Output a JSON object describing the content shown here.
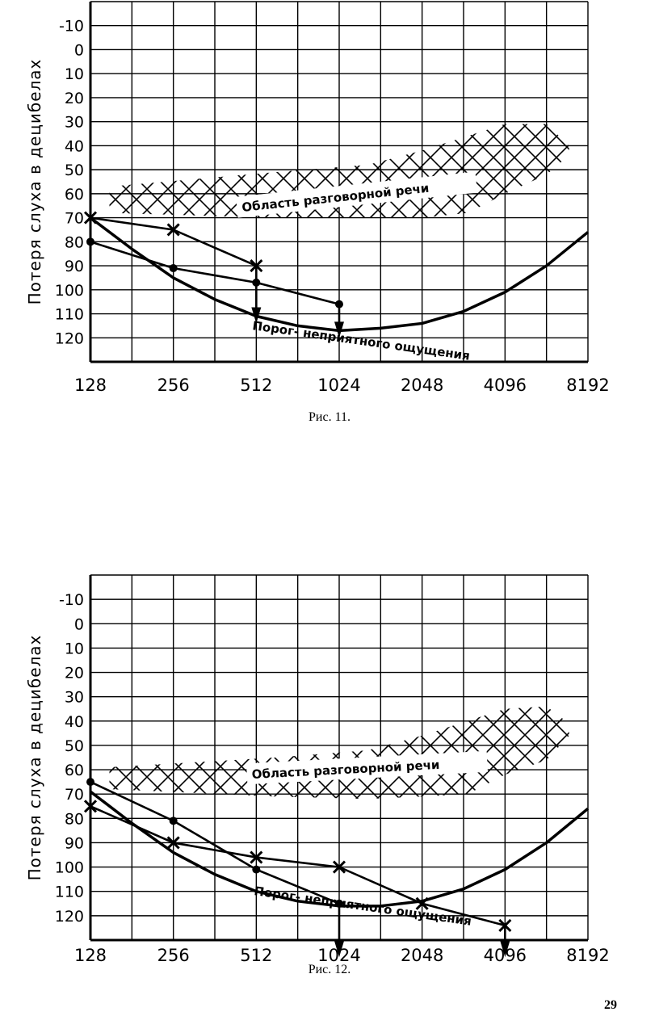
{
  "chart_data": [
    {
      "type": "line",
      "caption": "Рис. 11.",
      "ylabel": "Потеря слуха в децибелах",
      "x_ticks": [
        "128",
        "256",
        "512",
        "1024",
        "2048",
        "4096",
        "8192"
      ],
      "y_ticks": [
        "-10",
        "0",
        "10",
        "20",
        "30",
        "40",
        "50",
        "60",
        "70",
        "80",
        "90",
        "100",
        "110",
        "120"
      ],
      "ylim": [
        -20,
        130
      ],
      "x_scale": "log2",
      "y_inverted": true,
      "grid": true,
      "speech_region": {
        "label": "Область разговорной речи",
        "top": [
          [
            150,
            57
          ],
          [
            600,
            51
          ],
          [
            1300,
            48
          ],
          [
            2048,
            42
          ],
          [
            4096,
            31
          ],
          [
            5800,
            31
          ],
          [
            7000,
            40
          ]
        ],
        "bottom": [
          [
            150,
            68
          ],
          [
            600,
            70
          ],
          [
            1300,
            70
          ],
          [
            2048,
            70
          ],
          [
            3000,
            68
          ],
          [
            4096,
            60
          ],
          [
            5800,
            52
          ],
          [
            7000,
            44
          ]
        ]
      },
      "threshold_curve": {
        "label": "Порог- неприятного ощущения",
        "points": [
          [
            128,
            70
          ],
          [
            181,
            83
          ],
          [
            256,
            95
          ],
          [
            362,
            104
          ],
          [
            512,
            111
          ],
          [
            724,
            115
          ],
          [
            1024,
            117
          ],
          [
            1448,
            116
          ],
          [
            2048,
            114
          ],
          [
            2896,
            109
          ],
          [
            4096,
            101
          ],
          [
            5793,
            90
          ],
          [
            8192,
            76
          ]
        ]
      },
      "series": [
        {
          "marker": "cross",
          "points": [
            [
              128,
              70
            ],
            [
              256,
              75
            ],
            [
              512,
              90
            ]
          ],
          "arrow_from": [
            512,
            90
          ],
          "arrow_to": [
            512,
            112
          ]
        },
        {
          "marker": "dot",
          "points": [
            [
              128,
              80
            ],
            [
              256,
              91
            ],
            [
              512,
              97
            ],
            [
              1024,
              106
            ]
          ],
          "arrow_from": [
            1024,
            106
          ],
          "arrow_to": [
            1024,
            118
          ]
        }
      ]
    },
    {
      "type": "line",
      "caption": "Рис. 12.",
      "ylabel": "Потеря слуха в децибелах",
      "x_ticks": [
        "128",
        "256",
        "512",
        "1024",
        "2048",
        "4096",
        "8192"
      ],
      "y_ticks": [
        "-10",
        "0",
        "10",
        "20",
        "30",
        "40",
        "50",
        "60",
        "70",
        "80",
        "90",
        "100",
        "110",
        "120"
      ],
      "ylim": [
        -20,
        130
      ],
      "x_scale": "log2",
      "y_inverted": true,
      "grid": true,
      "speech_region": {
        "label": "Область разговорной речи",
        "top": [
          [
            150,
            59
          ],
          [
            600,
            55
          ],
          [
            1300,
            52
          ],
          [
            2048,
            46
          ],
          [
            4096,
            35
          ],
          [
            5800,
            34
          ],
          [
            7000,
            41
          ]
        ],
        "bottom": [
          [
            150,
            68
          ],
          [
            600,
            71
          ],
          [
            1300,
            72
          ],
          [
            2048,
            71
          ],
          [
            3000,
            70
          ],
          [
            4096,
            62
          ],
          [
            5800,
            56
          ],
          [
            7000,
            46
          ]
        ]
      },
      "threshold_curve": {
        "label": "Порог- неприятного ощущения",
        "points": [
          [
            128,
            69
          ],
          [
            181,
            82
          ],
          [
            256,
            94
          ],
          [
            362,
            103
          ],
          [
            512,
            110
          ],
          [
            724,
            114
          ],
          [
            1024,
            116
          ],
          [
            1448,
            116
          ],
          [
            2048,
            114
          ],
          [
            2896,
            109
          ],
          [
            4096,
            101
          ],
          [
            5793,
            90
          ],
          [
            8192,
            76
          ]
        ]
      },
      "series": [
        {
          "marker": "dot",
          "points": [
            [
              128,
              65
            ],
            [
              256,
              81
            ],
            [
              512,
              101
            ],
            [
              1024,
              115
            ]
          ],
          "arrow_from": [
            1024,
            115
          ],
          "arrow_to": [
            1024,
            135
          ]
        },
        {
          "marker": "cross",
          "points": [
            [
              128,
              75
            ],
            [
              256,
              90
            ],
            [
              512,
              96
            ],
            [
              1024,
              100
            ],
            [
              2048,
              115
            ],
            [
              4096,
              124
            ]
          ],
          "arrow_from": [
            4096,
            124
          ],
          "arrow_to": [
            4096,
            135
          ]
        }
      ]
    }
  ],
  "page_number": "29"
}
